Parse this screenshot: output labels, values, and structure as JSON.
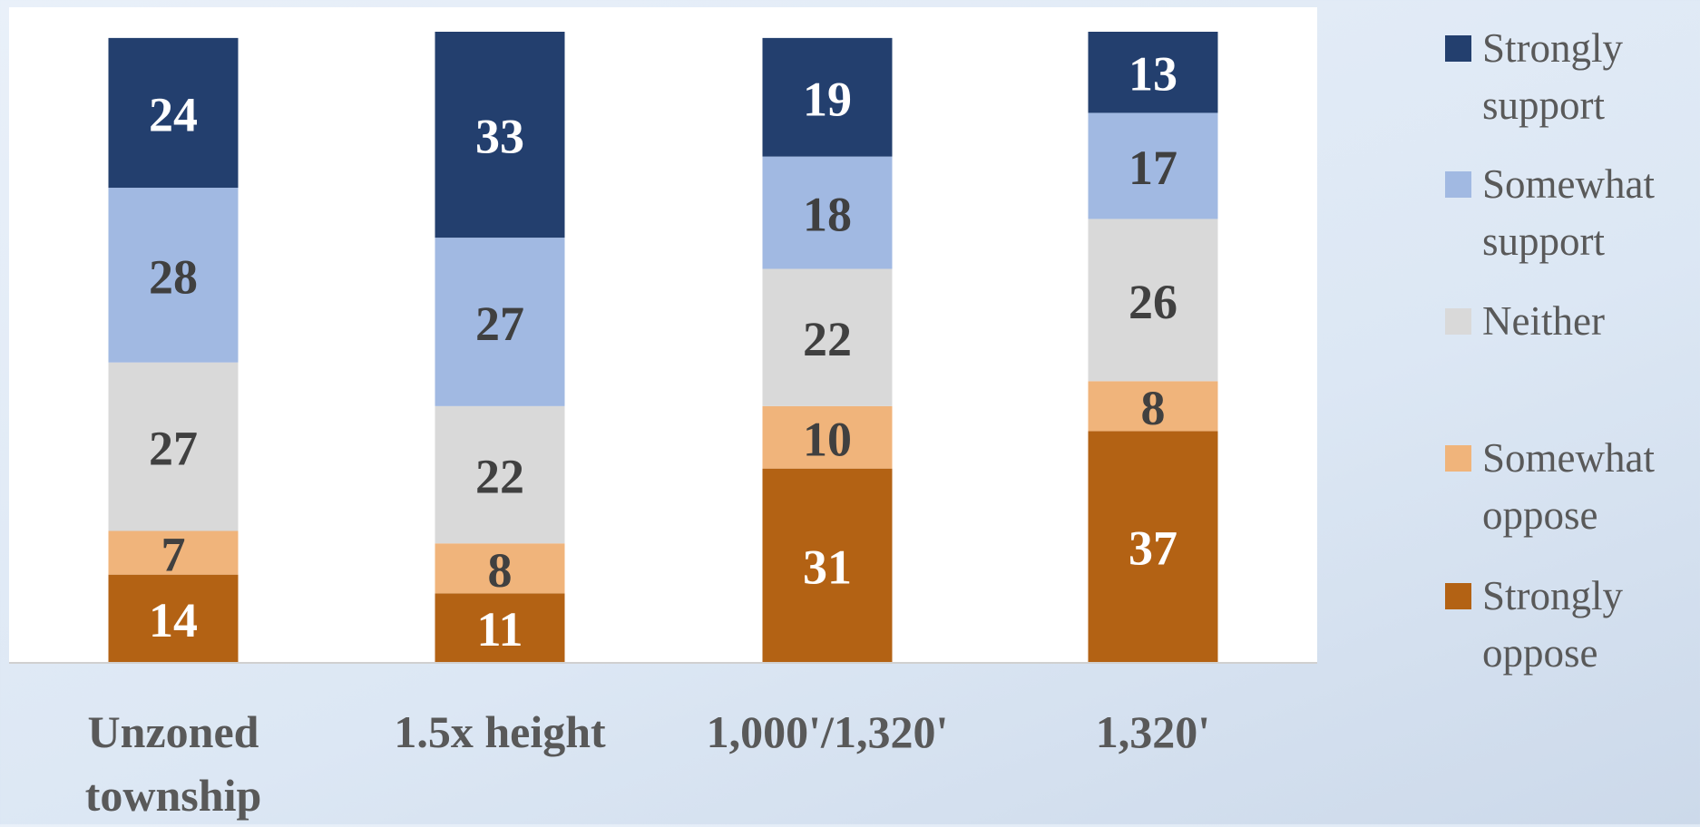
{
  "chart_data": {
    "type": "stacked_bar",
    "categories": [
      "Unzoned township",
      "1.5x height",
      "1,000'/1,320'",
      "1,320'"
    ],
    "series": [
      {
        "name": "Strongly oppose",
        "color": "#b36214",
        "values": [
          14,
          11,
          31,
          37
        ]
      },
      {
        "name": "Somewhat oppose",
        "color": "#f0b47b",
        "values": [
          7,
          8,
          10,
          8
        ]
      },
      {
        "name": "Neither",
        "color": "#d9d9d9",
        "values": [
          27,
          22,
          22,
          26
        ]
      },
      {
        "name": "Somewhat support",
        "color": "#a1b9e2",
        "values": [
          28,
          27,
          18,
          17
        ]
      },
      {
        "name": "Strongly support",
        "color": "#233f6e",
        "values": [
          24,
          33,
          19,
          13
        ]
      }
    ],
    "legend": "right"
  }
}
